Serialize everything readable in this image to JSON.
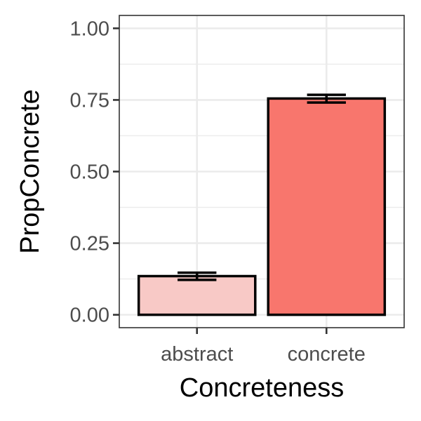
{
  "chart_data": {
    "type": "bar",
    "categories": [
      "abstract",
      "concrete"
    ],
    "values": [
      0.135,
      0.755
    ],
    "error_low": [
      0.122,
      0.741
    ],
    "error_high": [
      0.147,
      0.768
    ],
    "fill_colors": [
      "#F8C9C6",
      "#F8766D"
    ],
    "title": "",
    "xlabel": "Concreteness",
    "ylabel": "PropConcrete",
    "ylim": [
      -0.045,
      1.045
    ],
    "yticks": [
      0.0,
      0.25,
      0.5,
      0.75,
      1.0
    ],
    "ytick_labels": [
      "0.00",
      "0.25",
      "0.50",
      "0.75",
      "1.00"
    ],
    "grid": true,
    "legend": "none",
    "theme": "bw"
  }
}
